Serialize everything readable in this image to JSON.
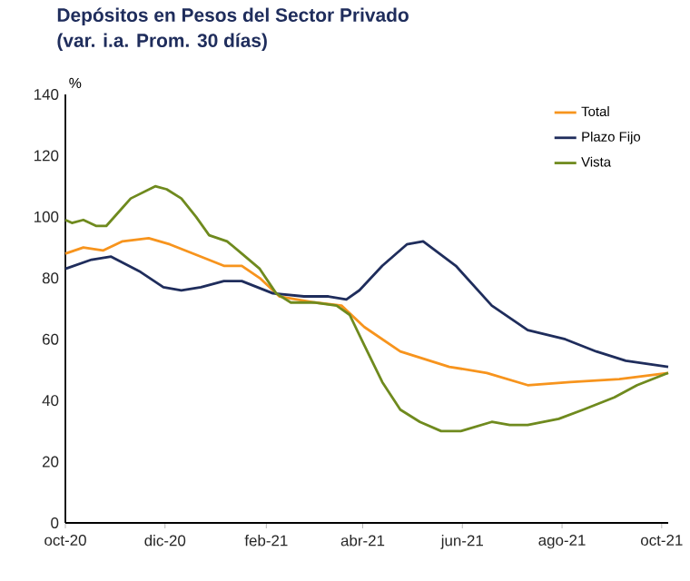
{
  "chart_data": {
    "type": "line",
    "title": "Depósitos en Pesos del Sector Privado",
    "subtitle": "(var. i.a. Prom. 30 días)",
    "ylabel": "%",
    "xlim": [
      "2020-10-01",
      "2021-10-05"
    ],
    "xticks": [
      {
        "value": "2020-10-01",
        "label": "oct-20"
      },
      {
        "value": "2020-12-01",
        "label": "dic-20"
      },
      {
        "value": "2021-02-01",
        "label": "feb-21"
      },
      {
        "value": "2021-04-01",
        "label": "abr-21"
      },
      {
        "value": "2021-06-01",
        "label": "jun-21"
      },
      {
        "value": "2021-08-01",
        "label": "ago-21"
      },
      {
        "value": "2021-10-01",
        "label": "oct-21"
      }
    ],
    "ylim": [
      0,
      140
    ],
    "yticks": [
      0,
      20,
      40,
      60,
      80,
      100,
      120,
      140
    ],
    "legend": "top right",
    "grid": false,
    "series": [
      {
        "name": "Total",
        "color": "#f7941d",
        "x": [
          "2020-10-01",
          "2020-10-12",
          "2020-10-24",
          "2020-11-05",
          "2020-11-21",
          "2020-12-04",
          "2020-12-23",
          "2021-01-06",
          "2021-01-17",
          "2021-01-28",
          "2021-02-09",
          "2021-03-03",
          "2021-03-19",
          "2021-04-02",
          "2021-04-24",
          "2021-05-24",
          "2021-06-16",
          "2021-07-11",
          "2021-08-06",
          "2021-09-05",
          "2021-10-05"
        ],
        "values": [
          88,
          90,
          89,
          92,
          93,
          91,
          87,
          84,
          84,
          80,
          74,
          72,
          71,
          64,
          56,
          51,
          49,
          45,
          46,
          47,
          49
        ]
      },
      {
        "name": "Plazo Fijo",
        "color": "#1f2d5c",
        "x": [
          "2020-10-01",
          "2020-10-17",
          "2020-10-29",
          "2020-11-16",
          "2020-11-30",
          "2020-12-11",
          "2020-12-23",
          "2021-01-06",
          "2021-01-17",
          "2021-02-05",
          "2021-02-24",
          "2021-03-11",
          "2021-03-22",
          "2021-03-30",
          "2021-04-13",
          "2021-04-28",
          "2021-05-08",
          "2021-05-28",
          "2021-06-19",
          "2021-07-11",
          "2021-08-03",
          "2021-08-22",
          "2021-09-09",
          "2021-10-05"
        ],
        "values": [
          83,
          86,
          87,
          82,
          77,
          76,
          77,
          79,
          79,
          75,
          74,
          74,
          73,
          76,
          84,
          91,
          92,
          84,
          71,
          63,
          60,
          56,
          53,
          51
        ]
      },
      {
        "name": "Vista",
        "color": "#6f8a1e",
        "x": [
          "2020-10-01",
          "2020-10-05",
          "2020-10-12",
          "2020-10-20",
          "2020-10-26",
          "2020-11-05",
          "2020-11-10",
          "2020-11-25",
          "2020-12-02",
          "2020-12-11",
          "2020-12-20",
          "2020-12-28",
          "2021-01-08",
          "2021-01-17",
          "2021-01-28",
          "2021-02-07",
          "2021-02-16",
          "2021-03-03",
          "2021-03-16",
          "2021-03-24",
          "2021-04-02",
          "2021-04-13",
          "2021-04-24",
          "2021-05-06",
          "2021-05-19",
          "2021-05-31",
          "2021-06-19",
          "2021-06-30",
          "2021-07-11",
          "2021-07-30",
          "2021-08-14",
          "2021-09-02",
          "2021-09-16",
          "2021-10-05"
        ],
        "values": [
          99,
          98,
          99,
          97,
          97,
          103,
          106,
          110,
          109,
          106,
          100,
          94,
          92,
          88,
          83,
          75,
          72,
          72,
          71,
          68,
          58,
          46,
          37,
          33,
          30,
          30,
          33,
          32,
          32,
          34,
          37,
          41,
          45,
          49
        ]
      }
    ]
  }
}
